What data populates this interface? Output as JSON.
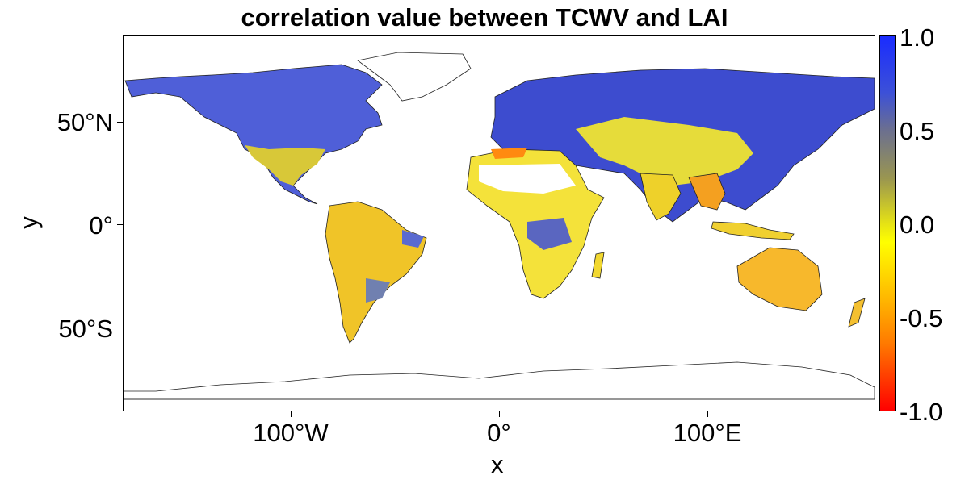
{
  "title": "correlation value between TCWV and LAI",
  "axes": {
    "x_label": "x",
    "y_label": "y",
    "x_ticks": [
      "100°W",
      "0°",
      "100°E"
    ],
    "y_ticks": [
      "50°N",
      "0°",
      "50°S"
    ]
  },
  "colorbar": {
    "labels": [
      "1.0",
      "0.5",
      "0.0",
      "-0.5",
      "-1.0"
    ],
    "range": [
      -1.0,
      1.0
    ],
    "colors": {
      "high": "#1a2cff",
      "mid": "#ffff00",
      "low": "#ff0000"
    }
  }
}
